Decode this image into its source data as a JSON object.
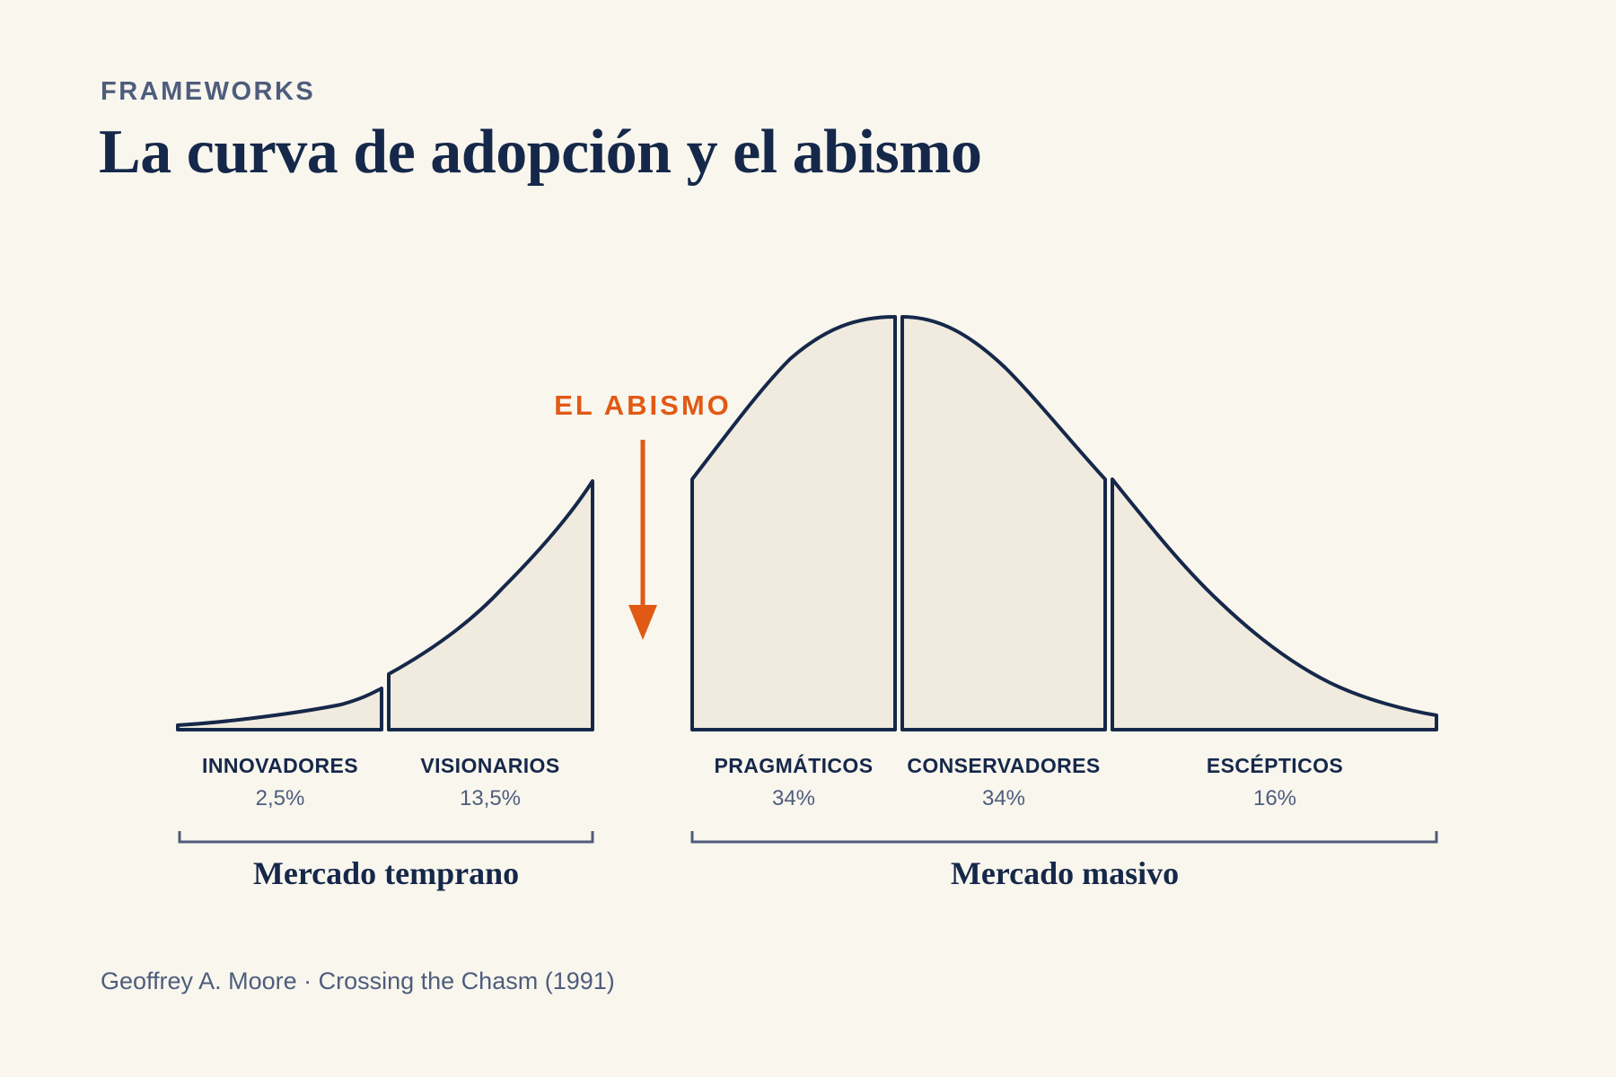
{
  "header": {
    "eyebrow": "FRAMEWORKS",
    "title": "La curva de adopción y el abismo"
  },
  "chasm": {
    "label": "EL ABISMO",
    "color": "#e05a14"
  },
  "colors": {
    "ink": "#16284a",
    "muted": "#4e5d7c",
    "fill": "#f0ebde",
    "background": "#f9f6ee"
  },
  "segments": [
    {
      "id": "innovadores",
      "label": "INNOVADORES",
      "pct": "2,5%",
      "share": 2.5
    },
    {
      "id": "visionarios",
      "label": "VISIONARIOS",
      "pct": "13,5%",
      "share": 13.5
    },
    {
      "id": "pragmaticos",
      "label": "PRAGMÁTICOS",
      "pct": "34%",
      "share": 34
    },
    {
      "id": "conservadores",
      "label": "CONSERVADORES",
      "pct": "34%",
      "share": 34
    },
    {
      "id": "escepticos",
      "label": "ESCÉPTICOS",
      "pct": "16%",
      "share": 16
    }
  ],
  "groups": [
    {
      "id": "temprano",
      "label": "Mercado temprano"
    },
    {
      "id": "masivo",
      "label": "Mercado masivo"
    }
  ],
  "source": "Geoffrey A. Moore · Crossing the Chasm (1991)"
}
